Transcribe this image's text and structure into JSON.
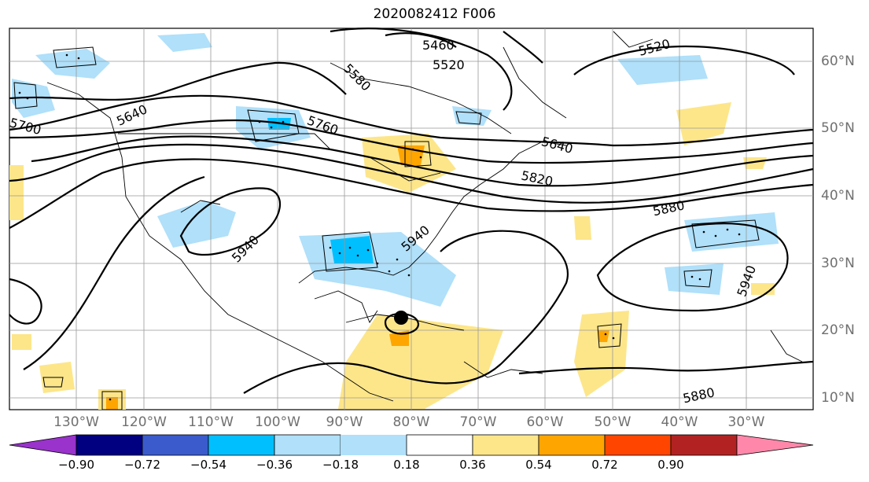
{
  "title": "2020082412 F006",
  "longitude_labels": [
    "130°W",
    "120°W",
    "110°W",
    "100°W",
    "90°W",
    "80°W",
    "70°W",
    "60°W",
    "50°W",
    "40°W",
    "30°W"
  ],
  "latitude_labels": [
    "60°N",
    "50°N",
    "40°N",
    "30°N",
    "20°N",
    "10°N"
  ],
  "contour_labels": [
    "5460",
    "5520",
    "5580",
    "5640",
    "5640",
    "5520",
    "5700",
    "5760",
    "5820",
    "5880",
    "5880",
    "5940",
    "5940",
    "5940"
  ],
  "colorbar": {
    "ticks": [
      "−0.90",
      "−0.72",
      "−0.54",
      "−0.36",
      "−0.18",
      "0.18",
      "0.36",
      "0.54",
      "0.72",
      "0.90"
    ],
    "colors": [
      "#9933cc",
      "#000080",
      "#3b5bcc",
      "#00bfff",
      "#b0e0fa",
      "#ffffff",
      "#fde68a",
      "#ffa500",
      "#ff4500",
      "#b22222",
      "#ff88aa"
    ]
  },
  "storm_marker": "black dot (storm center)"
}
